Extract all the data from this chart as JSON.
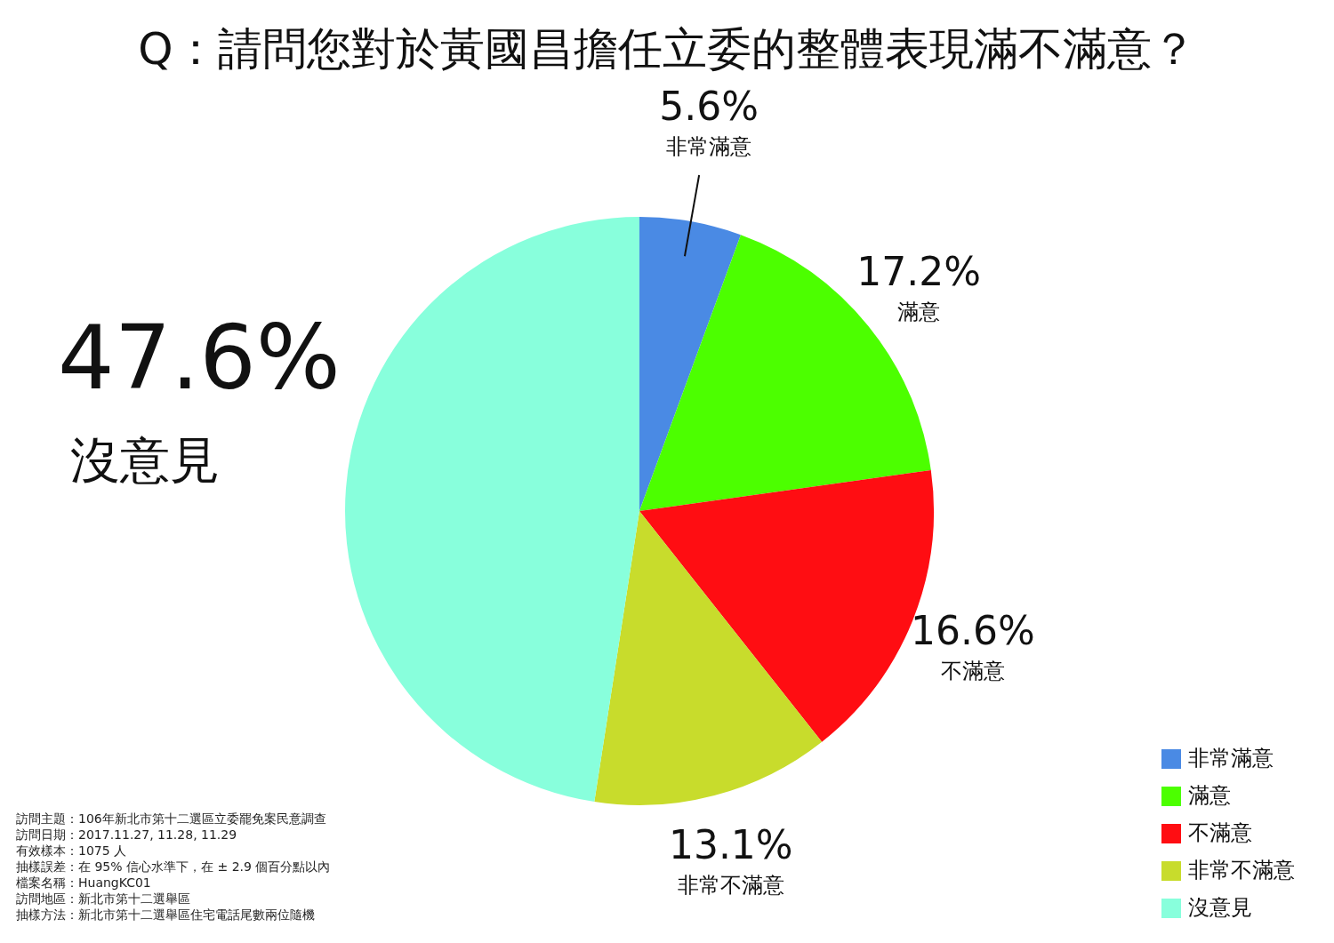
{
  "chart_data": {
    "type": "pie",
    "title": "Q：請問您對於黃國昌擔任立委的整體表現滿不滿意？",
    "categories": [
      "非常滿意",
      "滿意",
      "不滿意",
      "非常不滿意",
      "沒意見"
    ],
    "values": [
      5.6,
      17.2,
      16.6,
      13.1,
      47.6
    ],
    "value_labels": [
      "5.6%",
      "17.2%",
      "16.6%",
      "13.1%",
      "47.6%"
    ],
    "colors": [
      "#4a8ae4",
      "#4cff00",
      "#ff0d12",
      "#c8dc2c",
      "#88ffdc"
    ],
    "legend": "bottom right",
    "annotations": [
      "訪問主題：106年新北市第十二選區立委罷免案民意調查",
      "訪問日期：2017.11.27, 11.28, 11.29",
      "有效樣本：1075 人",
      "抽樣誤差：在 95% 信心水準下，在 ± 2.9 個百分點以內",
      "檔案名稱：HuangKC01",
      "訪問地區：新北市第十二選舉區",
      "抽樣方法：新北市第十二選舉區住宅電話尾數兩位隨機"
    ]
  }
}
